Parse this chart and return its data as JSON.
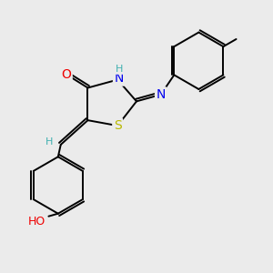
{
  "background_color": "#ebebeb",
  "figsize": [
    3.0,
    3.0
  ],
  "dpi": 100,
  "atom_colors": {
    "S": "#b8b800",
    "N": "#0000ee",
    "O": "#ee0000",
    "H_cyan": "#40b0b0",
    "C": "#000000"
  },
  "bond_color": "#000000",
  "bond_lw": 1.4,
  "xlim": [
    0,
    10
  ],
  "ylim": [
    0,
    10
  ]
}
